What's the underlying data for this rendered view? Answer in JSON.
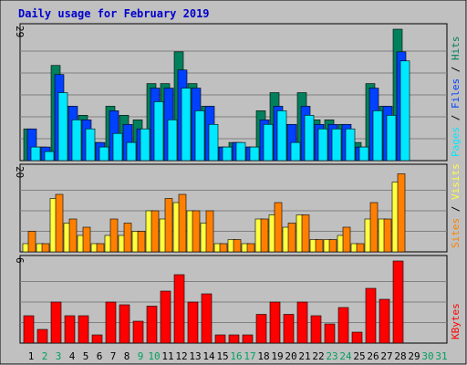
{
  "title": "Daily usage for February 2019",
  "colors": {
    "background": "#ffffff",
    "frame": "#c0c0c0",
    "panel": "#c0c0c0",
    "gridline": "#808080",
    "title": "#0000cc",
    "hits": "#00805c",
    "files": "#0040ff",
    "pages": "#00e8ff",
    "visits": "#ffff40",
    "sites": "#ff8000",
    "kbytes": "#ff0000",
    "weekend_day": "#00a060",
    "weekday_day": "#000000"
  },
  "chart_data": [
    {
      "type": "bar",
      "title": "Daily usage for February 2019",
      "panel": "top",
      "ymax_label": "29",
      "ylim": [
        0,
        29
      ],
      "categories": [
        "1",
        "2",
        "3",
        "4",
        "5",
        "6",
        "7",
        "8",
        "9",
        "10",
        "11",
        "12",
        "13",
        "14",
        "15",
        "16",
        "17",
        "18",
        "19",
        "20",
        "21",
        "22",
        "23",
        "24",
        "25",
        "26",
        "27",
        "28",
        "29",
        "30",
        "31"
      ],
      "series": [
        {
          "name": "Hits",
          "color": "#00805c",
          "values": [
            7,
            3,
            21,
            12,
            10,
            4,
            12,
            10,
            9,
            17,
            17,
            24,
            17,
            12,
            3,
            4,
            3,
            11,
            15,
            8,
            15,
            9,
            9,
            8,
            4,
            17,
            12,
            29,
            0,
            0,
            0
          ]
        },
        {
          "name": "Files",
          "color": "#0040ff",
          "values": [
            7,
            3,
            19,
            12,
            9,
            4,
            11,
            8,
            7,
            16,
            16,
            20,
            16,
            12,
            3,
            4,
            3,
            9,
            12,
            8,
            12,
            8,
            8,
            8,
            3,
            16,
            12,
            24,
            0,
            0,
            0
          ]
        },
        {
          "name": "Pages",
          "color": "#00e8ff",
          "values": [
            3,
            2,
            15,
            9,
            7,
            3,
            6,
            4,
            7,
            13,
            9,
            16,
            11,
            8,
            3,
            4,
            3,
            8,
            11,
            4,
            10,
            7,
            7,
            7,
            3,
            11,
            10,
            22,
            0,
            0,
            0
          ]
        }
      ],
      "right_label_order": [
        "Pages",
        "Files",
        "Hits"
      ]
    },
    {
      "type": "bar",
      "panel": "middle",
      "ymax_label": "20",
      "ylim": [
        0,
        20
      ],
      "series": [
        {
          "name": "Visits",
          "color": "#ffff40",
          "values": [
            2,
            2,
            13,
            7,
            4,
            2,
            4,
            4,
            5,
            10,
            8,
            12,
            10,
            7,
            2,
            3,
            2,
            8,
            9,
            6,
            9,
            3,
            3,
            4,
            2,
            8,
            8,
            17,
            0,
            0,
            0
          ]
        },
        {
          "name": "Sites",
          "color": "#ff8000",
          "values": [
            5,
            2,
            14,
            8,
            6,
            2,
            8,
            7,
            5,
            10,
            13,
            14,
            10,
            10,
            2,
            3,
            2,
            8,
            12,
            7,
            9,
            3,
            3,
            6,
            2,
            12,
            8,
            19,
            0,
            0,
            0
          ]
        }
      ],
      "right_label_order": [
        "Sites",
        "Visits"
      ]
    },
    {
      "type": "bar",
      "panel": "bottom",
      "ymax_label": "6",
      "ylim": [
        0,
        6
      ],
      "series": [
        {
          "name": "KBytes",
          "color": "#ff0000",
          "values": [
            2,
            1,
            3,
            2,
            2,
            0.6,
            3,
            2.8,
            1.6,
            2.7,
            3.8,
            5,
            3,
            3.6,
            0.6,
            0.6,
            0.6,
            2.1,
            3,
            2.1,
            3,
            2,
            1.4,
            2.6,
            0.8,
            4,
            3.2,
            6,
            0,
            0,
            0
          ]
        }
      ],
      "right_label_order": [
        "KBytes"
      ]
    }
  ],
  "x_axis": {
    "labels": [
      "1",
      "2",
      "3",
      "4",
      "5",
      "6",
      "7",
      "8",
      "9",
      "10",
      "11",
      "12",
      "13",
      "14",
      "15",
      "16",
      "17",
      "18",
      "19",
      "20",
      "21",
      "22",
      "23",
      "24",
      "25",
      "26",
      "27",
      "28",
      "29",
      "30",
      "31"
    ],
    "weekend_days": [
      "2",
      "3",
      "9",
      "10",
      "16",
      "17",
      "23",
      "24",
      "30",
      "31"
    ]
  }
}
